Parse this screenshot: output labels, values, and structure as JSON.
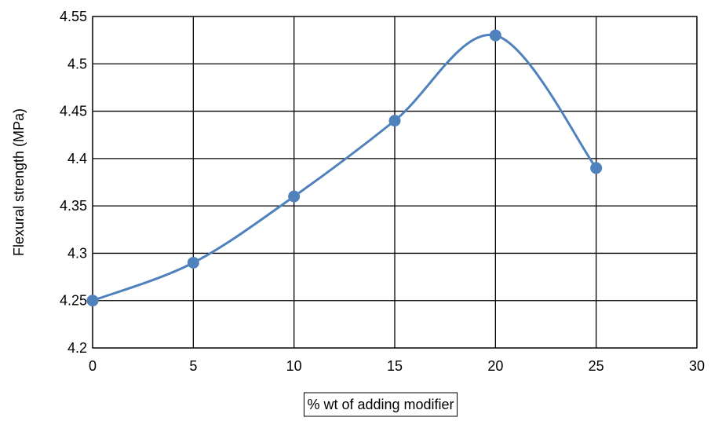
{
  "chart_data": {
    "type": "line",
    "smooth": true,
    "x": [
      0,
      5,
      10,
      15,
      20,
      25
    ],
    "y": [
      4.25,
      4.29,
      4.36,
      4.44,
      4.53,
      4.39
    ],
    "xlabel": "% wt of adding modifier",
    "ylabel": "Flexural strength (MPa)",
    "xlim": [
      0,
      30
    ],
    "ylim": [
      4.2,
      4.55
    ],
    "x_ticks": [
      "0",
      "5",
      "10",
      "15",
      "20",
      "25",
      "30"
    ],
    "y_ticks": [
      "4.2",
      "4.25",
      "4.3",
      "4.35",
      "4.4",
      "4.45",
      "4.5",
      "4.55"
    ],
    "grid": true,
    "marker": "circle",
    "line_color": "#4F81BD"
  }
}
